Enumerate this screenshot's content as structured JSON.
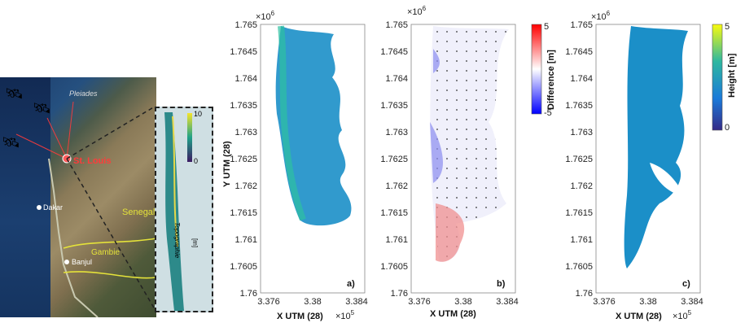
{
  "map": {
    "satellite_label": "Pleiades",
    "city_main": "St. Louis",
    "city_dakar": "Dakar",
    "city_banjul": "Banjul",
    "country_senegal": "Senegal",
    "country_gambia": "Gambie",
    "colors": {
      "ocean": "#1b3f70",
      "land": "#9c8b66",
      "border": "#e4e23a",
      "city": "#ff3b3b"
    }
  },
  "inset": {
    "colorbar_ticks": [
      "10",
      "0"
    ],
    "label": "Topographie",
    "unit": "[m]"
  },
  "panels": [
    {
      "id": "a",
      "tag": "a)",
      "ylabel": "Y UTM (28)",
      "xlabel": "X UTM (28)",
      "yexp": "×10",
      "yexp_pow": "6",
      "xexp": "×10",
      "xexp_pow": "5"
    },
    {
      "id": "b",
      "tag": "b)",
      "ylabel": "",
      "xlabel": "X UTM (28)",
      "yexp": "×10",
      "yexp_pow": "6",
      "xexp": "",
      "xexp_pow": ""
    },
    {
      "id": "c",
      "tag": "c)",
      "ylabel": "",
      "xlabel": "X UTM (28)",
      "yexp": "×10",
      "yexp_pow": "6",
      "xexp": "×10",
      "xexp_pow": "5"
    }
  ],
  "yticks": [
    "1.765",
    "1.7645",
    "1.764",
    "1.7635",
    "1.763",
    "1.7625",
    "1.762",
    "1.7615",
    "1.761",
    "1.7605",
    "1.76"
  ],
  "xticks": [
    "3.376",
    "3.38",
    "3.384"
  ],
  "colorbar_diff": {
    "label": "Difference [m]",
    "max": "5",
    "min": "-5"
  },
  "colorbar_height": {
    "label": "Height [m]",
    "max": "5",
    "min": "0"
  }
}
